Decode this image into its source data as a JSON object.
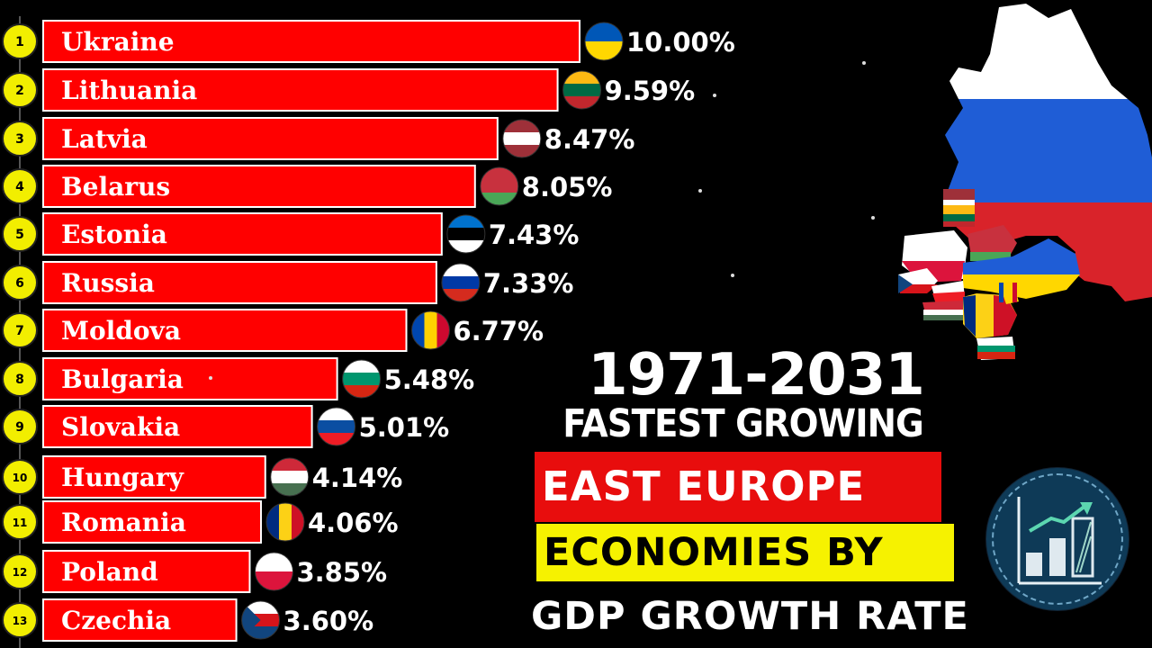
{
  "chart_data": {
    "type": "bar",
    "orientation": "horizontal",
    "ranks": [
      "1",
      "2",
      "3",
      "4",
      "5",
      "6",
      "7",
      "8",
      "9",
      "10",
      "11",
      "12",
      "13"
    ],
    "categories": [
      "Ukraine",
      "Lithuania",
      "Latvia",
      "Belarus",
      "Estonia",
      "Russia",
      "Moldova",
      "Bulgaria",
      "Slovakia",
      "Hungary",
      "Romania",
      "Poland",
      "Czechia"
    ],
    "values": [
      10.0,
      9.59,
      8.47,
      8.05,
      7.43,
      7.33,
      6.77,
      5.48,
      5.01,
      4.14,
      4.06,
      3.85,
      3.6
    ],
    "value_labels": [
      "10.00%",
      "9.59%",
      "8.47%",
      "8.05%",
      "7.43%",
      "7.33%",
      "6.77%",
      "5.48%",
      "5.01%",
      "4.14%",
      "4.06%",
      "3.85%",
      "3.60%"
    ],
    "xlim": [
      0,
      10
    ],
    "grid": false,
    "legend": "none",
    "bar_color": "#ff0000",
    "rank_circle_color": "#f2ee00"
  },
  "title": {
    "years": "1971-2031",
    "line1": "FASTEST GROWING",
    "line2": "EAST EUROPE",
    "line3": "ECONOMIES BY",
    "line4": "GDP GROWTH RATE"
  },
  "icons": {
    "map": "east-europe-flag-map",
    "badge": "growth-chart-icon"
  },
  "flags": {
    "Ukraine": [
      "#0057b7",
      "#ffd700"
    ],
    "Lithuania": [
      "#fdb913",
      "#006a44",
      "#c1272d"
    ],
    "Latvia": [
      "#9e3039",
      "#ffffff",
      "#9e3039"
    ],
    "Belarus": [
      "#c8313e",
      "#c8313e",
      "#4aa657"
    ],
    "Estonia": [
      "#0072ce",
      "#000000",
      "#ffffff"
    ],
    "Russia": [
      "#ffffff",
      "#0039a6",
      "#d52b1e"
    ],
    "Moldova": [
      "#0046ae",
      "#ffd200",
      "#cc092f"
    ],
    "Bulgaria": [
      "#ffffff",
      "#00966e",
      "#d62612"
    ],
    "Slovakia": [
      "#ffffff",
      "#0b4ea2",
      "#ee1c25"
    ],
    "Hungary": [
      "#ce2939",
      "#ffffff",
      "#477050"
    ],
    "Romania": [
      "#002b7f",
      "#fcd116",
      "#ce1126"
    ],
    "Poland": [
      "#ffffff",
      "#dc143c"
    ],
    "Czechia": [
      "#ffffff",
      "#d7141a",
      "#11457e"
    ]
  }
}
